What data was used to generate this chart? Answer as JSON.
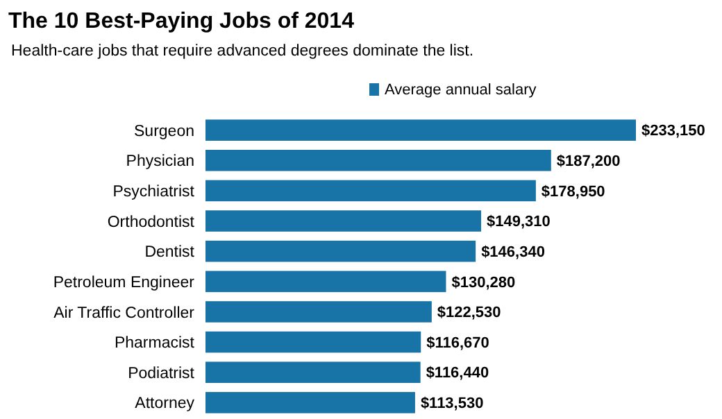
{
  "chart_data": {
    "type": "bar",
    "orientation": "horizontal",
    "title": "The 10 Best-Paying Jobs of 2014",
    "subtitle": "Health-care jobs that require advanced degrees dominate the list.",
    "categories": [
      "Surgeon",
      "Physician",
      "Psychiatrist",
      "Orthodontist",
      "Dentist",
      "Petroleum Engineer",
      "Air Traffic Controller",
      "Pharmacist",
      "Podiatrist",
      "Attorney"
    ],
    "series": [
      {
        "name": "Average annual salary",
        "color": "#1873a6",
        "values": [
          233150,
          187200,
          178950,
          149310,
          146340,
          130280,
          122530,
          116670,
          116440,
          113530
        ],
        "value_labels": [
          "$233,150",
          "$187,200",
          "$178,950",
          "$149,310",
          "$146,340",
          "$130,280",
          "$122,530",
          "$116,670",
          "$116,440",
          "$113,530"
        ]
      }
    ],
    "legend": "top",
    "tick_labels": "y"
  }
}
